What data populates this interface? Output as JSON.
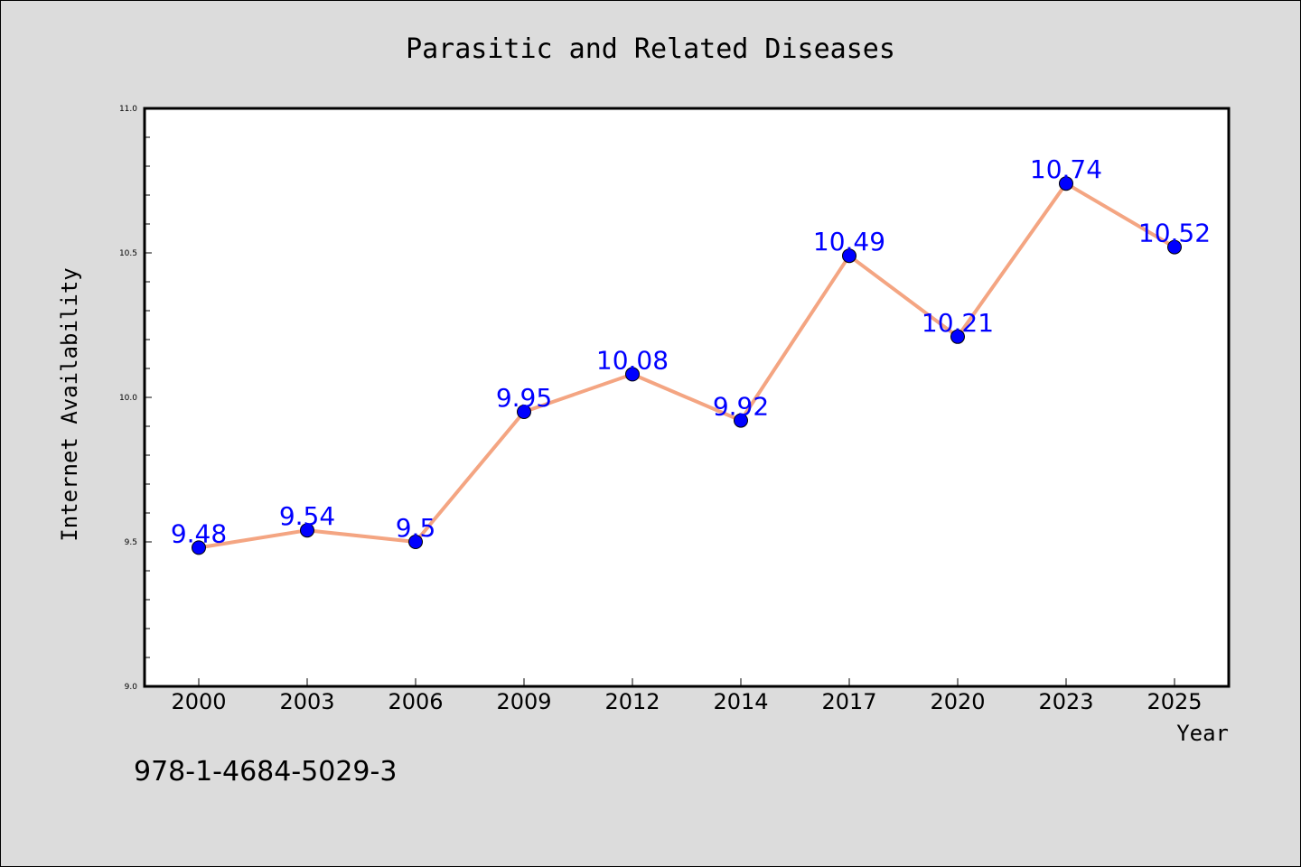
{
  "chart_data": {
    "type": "line",
    "title": "Parasitic and Related Diseases",
    "xlabel": "Year",
    "ylabel": "Internet Availability",
    "categories": [
      "2000",
      "2003",
      "2006",
      "2009",
      "2012",
      "2014",
      "2017",
      "2020",
      "2023",
      "2025"
    ],
    "series": [
      {
        "values": [
          9.48,
          9.54,
          9.5,
          9.95,
          10.08,
          9.92,
          10.49,
          10.21,
          10.74,
          10.52
        ]
      }
    ],
    "ylim": [
      9.0,
      11.0
    ],
    "y_major_ticks": [
      "9.0",
      "9.5",
      "10.0",
      "10.5",
      "11.0"
    ],
    "data_labels": [
      "9.48",
      "9.54",
      "9.5",
      "9.95",
      "10.08",
      "9.92",
      "10.49",
      "10.21",
      "10.74",
      "10.52"
    ],
    "grid": false,
    "legend": "none",
    "colors": {
      "background": "#dcdcdc",
      "plot_area": "#ffffff",
      "line": "#f4a582",
      "marker": "#0000ff",
      "data_label": "#0000ff"
    }
  },
  "footer_text": "978-1-4684-5029-3"
}
